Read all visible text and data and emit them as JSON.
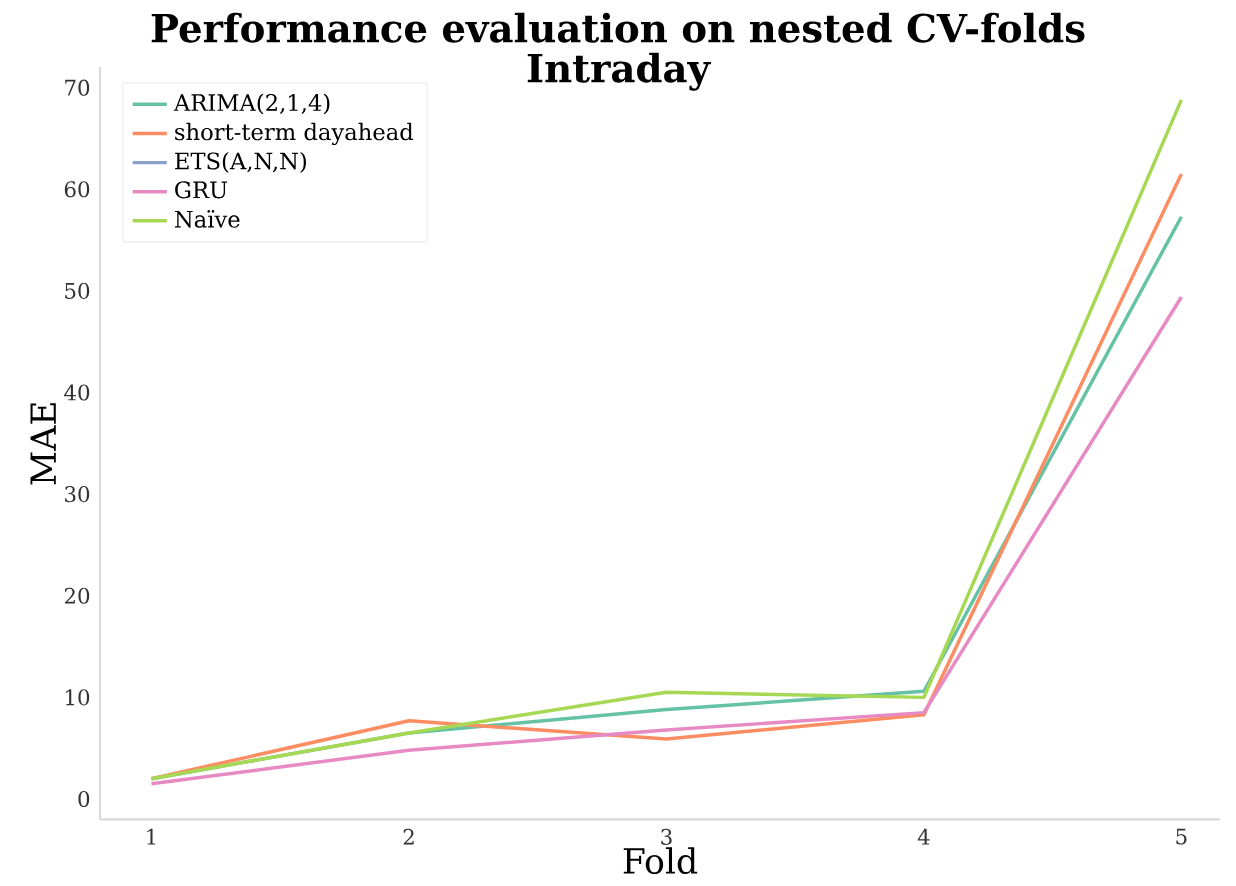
{
  "chart_data": {
    "type": "line",
    "title": "Performance evaluation on nested CV-folds",
    "subtitle": "Intraday",
    "xlabel": "Fold",
    "ylabel": "MAE",
    "x": [
      1,
      2,
      3,
      4,
      5
    ],
    "xlim": [
      0.8,
      5.15
    ],
    "xticks": [
      1,
      2,
      3,
      4,
      5
    ],
    "ylim": [
      -2,
      72
    ],
    "yticks": [
      0,
      10,
      20,
      30,
      40,
      50,
      60,
      70
    ],
    "series": [
      {
        "name": "ARIMA(2,1,4)",
        "color": "#66c2a5",
        "values": [
          2.0,
          6.5,
          8.8,
          10.6,
          57.3
        ]
      },
      {
        "name": "short-term dayahead",
        "color": "#fc8d62",
        "values": [
          2.0,
          7.7,
          5.9,
          8.3,
          61.5
        ]
      },
      {
        "name": "ETS(A,N,N)",
        "color": "#8da0cb",
        "values": [
          null,
          null,
          null,
          null,
          null
        ]
      },
      {
        "name": "GRU",
        "color": "#e78ac3",
        "values": [
          1.5,
          4.8,
          6.8,
          8.5,
          49.4
        ]
      },
      {
        "name": "Naïve",
        "color": "#a6d854",
        "values": [
          2.0,
          6.5,
          10.5,
          10.0,
          68.8
        ]
      }
    ],
    "legend": "top left",
    "grid": false,
    "marker": "none",
    "line_style": "solid"
  }
}
